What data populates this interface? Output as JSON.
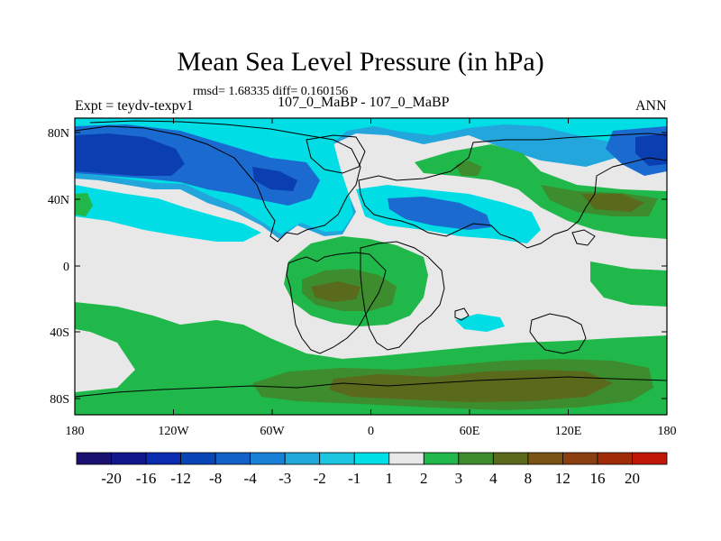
{
  "title": "Mean Sea Level Pressure (in hPa)",
  "stats": "rmsd= 1.68335 diff= 0.160156",
  "experiment": "Expt = teydv-texpv1",
  "comparison": "107_0_MaBP - 107_0_MaBP",
  "season": "ANN",
  "axes": {
    "lat_ticks": [
      "80N",
      "40N",
      "0",
      "40S",
      "80S"
    ],
    "lon_ticks": [
      "180",
      "120W",
      "60W",
      "0",
      "60E",
      "120E",
      "180"
    ]
  },
  "colorbar": {
    "labels": [
      "-20",
      "-16",
      "-12",
      "-8",
      "-4",
      "-3",
      "-2",
      "-1",
      "1",
      "2",
      "3",
      "4",
      "8",
      "12",
      "16",
      "20"
    ],
    "colors": [
      "#1a1070",
      "#13178c",
      "#0b2cb0",
      "#0a45b8",
      "#1161c8",
      "#1a82d6",
      "#21a9dc",
      "#1cc6e0",
      "#00dee6",
      "#e8e8e8",
      "#20b84a",
      "#3d8c2e",
      "#5a6a1c",
      "#7a5414",
      "#8a4010",
      "#a02c0a",
      "#c01808"
    ]
  },
  "palette": {
    "deep_blue": "#0b3eb0",
    "blue": "#1a6ad0",
    "light_blue": "#22a6dc",
    "cyan": "#00dde4",
    "neutral": "#e8e8e8",
    "green": "#20b84a",
    "dark_green": "#3d8c2e",
    "olive": "#5a6a1c"
  }
}
